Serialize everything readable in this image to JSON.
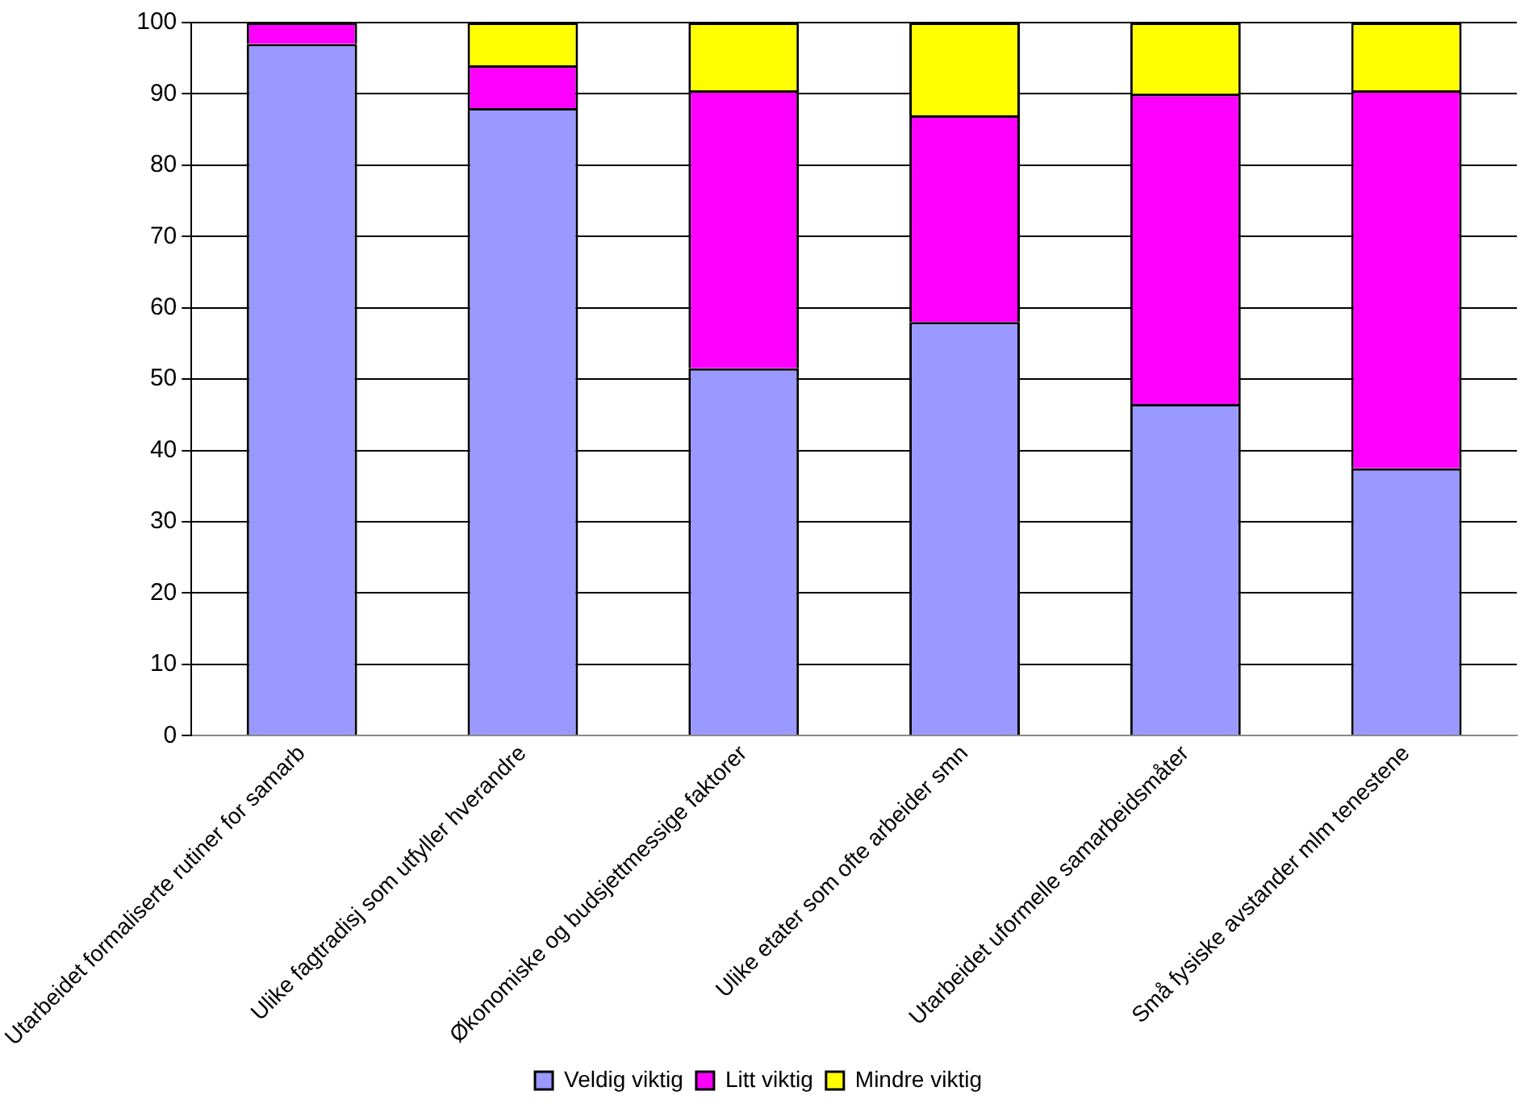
{
  "chart_data": {
    "type": "bar",
    "stacked": true,
    "categories": [
      "Utarbeidet formaliserte rutiner for samarb",
      "Ulike fagtradisj som utfyller hverandre",
      "Økonomiske og budsjettmessige faktorer",
      "Ulike etater som ofte arbeider smn",
      "Utarbeidet uformelle samarbeidsmåter",
      "Små fysiske avstander mlm tenestene"
    ],
    "series": [
      {
        "name": "Veldig viktig",
        "color": "#9999ff",
        "values": [
          97,
          88,
          51.5,
          58,
          46.5,
          37.5
        ]
      },
      {
        "name": "Litt viktig",
        "color": "#ff00ff",
        "values": [
          3,
          6,
          39,
          29,
          43.5,
          53
        ]
      },
      {
        "name": "Mindre viktig",
        "color": "#ffff00",
        "values": [
          0,
          6,
          9.5,
          13,
          10,
          9.5
        ]
      }
    ],
    "ylim": [
      0,
      100
    ],
    "yticks": [
      0,
      10,
      20,
      30,
      40,
      50,
      60,
      70,
      80,
      90,
      100
    ],
    "grid": "y",
    "legend": "bottom"
  }
}
